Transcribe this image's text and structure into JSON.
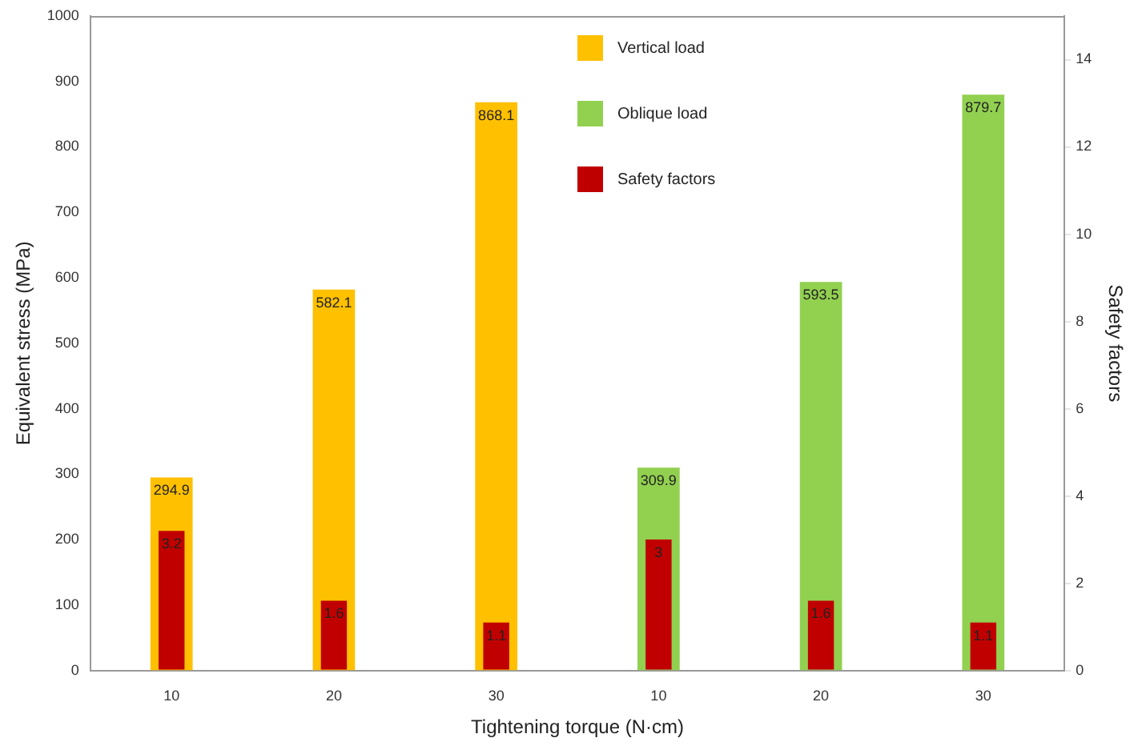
{
  "chart_data": {
    "type": "bar",
    "xlabel": "Tightening torque (N·cm)",
    "ylabel": "Equivalent stress (MPa)",
    "y2label": "Safety factors",
    "categories": [
      "10",
      "20",
      "30",
      "10",
      "20",
      "30"
    ],
    "series": [
      {
        "name": "Vertical load",
        "color": "#ffc000",
        "values": [
          294.9,
          582.1,
          868.1,
          null,
          null,
          null
        ]
      },
      {
        "name": "Oblique load",
        "color": "#92d050",
        "values": [
          null,
          null,
          null,
          309.9,
          593.5,
          879.7
        ]
      },
      {
        "name": "Safety factors",
        "color": "#c00000",
        "axis": "y2",
        "values": [
          3.2,
          1.6,
          1.1,
          3,
          1.6,
          1.1
        ]
      }
    ],
    "ylim": [
      0,
      1000
    ],
    "yticks": [
      0,
      100,
      200,
      300,
      400,
      500,
      600,
      700,
      800,
      900,
      1000
    ],
    "y2lim": [
      0,
      15
    ],
    "y2ticks": [
      0,
      2,
      4,
      6,
      8,
      10,
      12,
      14
    ],
    "data_labels": true,
    "grid": false,
    "legend": "top"
  }
}
